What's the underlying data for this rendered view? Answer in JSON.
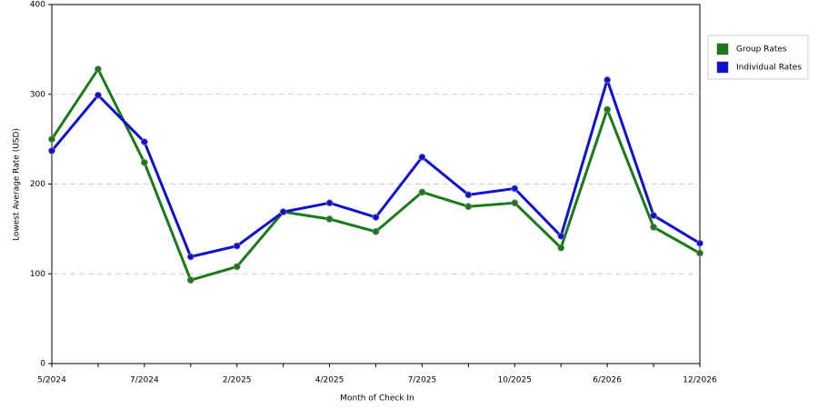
{
  "chart_data": {
    "type": "line",
    "x_label": "Month of Check In",
    "y_label": "Lowest Average Rate (USD)",
    "categories": [
      "5/2024",
      null,
      "7/2024",
      null,
      "2/2025",
      null,
      "4/2025",
      null,
      "7/2025",
      null,
      "10/2025",
      null,
      "6/2026",
      null,
      "12/2026"
    ],
    "series": [
      {
        "name": "Group Rates",
        "color": "#1a7a1a",
        "values": [
          250,
          328,
          224,
          93,
          108,
          169,
          161,
          147,
          191,
          175,
          179,
          129,
          283,
          152,
          123
        ]
      },
      {
        "name": "Individual Rates",
        "color": "#1010d0",
        "values": [
          237,
          299,
          247,
          119,
          131,
          169,
          179,
          163,
          230,
          188,
          195,
          142,
          316,
          165,
          134
        ]
      }
    ],
    "ylim": [
      0,
      400
    ],
    "yticks": [
      0,
      100,
      200,
      300,
      400
    ],
    "grid": true,
    "legend": "right"
  }
}
